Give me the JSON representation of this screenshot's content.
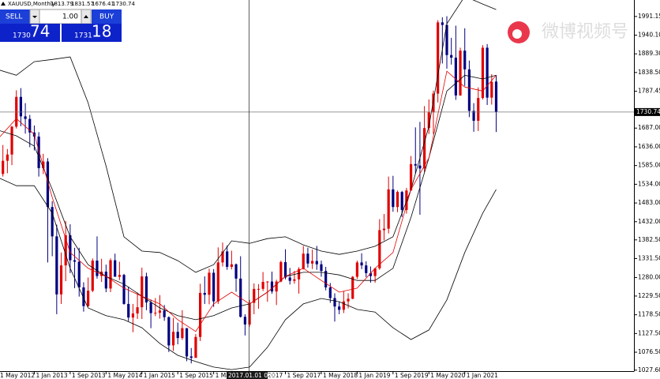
{
  "chart_data": {
    "type": "candlestick",
    "title": "XAUUSD,Monthly",
    "colors": {
      "up": "#e00000",
      "down": "#00007f",
      "background": "#ffffff"
    },
    "ylim": [
      1025,
      2036
    ],
    "yticks": [
      1991.15,
      {
        "value": 1940.1,
        "label": "1940.10"
      },
      {
        "value": 1889.3,
        "label": "1889.30"
      },
      {
        "value": 1838.5,
        "label": "1838.50"
      },
      1787.45,
      {
        "value": 1687,
        "label": "1687.00"
      },
      {
        "value": 1636,
        "label": "1636.00"
      },
      {
        "value": 1585,
        "label": "1585.00"
      },
      {
        "value": 1534,
        "label": "1534.00"
      },
      {
        "value": 1483,
        "label": "1483.00"
      },
      {
        "value": 1432,
        "label": "1432.00"
      },
      {
        "value": 1382.5,
        "label": "1382.50"
      },
      {
        "value": 1331.5,
        "label": "1331.50"
      },
      {
        "value": 1280,
        "label": "1280.00"
      },
      {
        "value": 1229.5,
        "label": "1229.50"
      },
      {
        "value": 1178.5,
        "label": "1178.50"
      },
      {
        "value": 1127.5,
        "label": "1127.50"
      },
      {
        "value": 1076.5,
        "label": "1076.50"
      },
      {
        "value": 1027.6,
        "label": "1027.60"
      }
    ],
    "xticks": [
      {
        "value": "2012-05-01",
        "label": "1 May 2012"
      },
      {
        "value": "2013-01-01",
        "label": "1 Jan 2013"
      },
      {
        "value": "2013-09-01",
        "label": "1 Sep 2013"
      },
      {
        "value": "2014-05-01",
        "label": "1 May 2014"
      },
      {
        "value": "2015-01-01",
        "label": "1 Jan 2015"
      },
      {
        "value": "2015-09-01",
        "label": "1 Sep 2015"
      },
      {
        "value": "2016-05-01",
        "label": "1 May 2016"
      },
      {
        "value": "2017-01-01",
        "label": "1 Jan 2017"
      },
      {
        "value": "2017-09-01",
        "label": "1 Sep 2017"
      },
      {
        "value": "2018-05-01",
        "label": "1 May 2018"
      },
      {
        "value": "2019-01-01",
        "label": "1 Jan 2019"
      },
      {
        "value": "2019-09-01",
        "label": "1 Sep 2019"
      },
      {
        "value": "2020-05-01",
        "label": "1 May 2020"
      },
      {
        "value": "2021-01-01",
        "label": "1 Jan 2021"
      }
    ],
    "candles": {
      "x": [
        "2012-05-01",
        "2012-06-01",
        "2012-07-01",
        "2012-08-01",
        "2012-09-01",
        "2012-10-01",
        "2012-11-01",
        "2012-12-01",
        "2013-01-01",
        "2013-02-01",
        "2013-03-01",
        "2013-04-01",
        "2013-05-01",
        "2013-06-01",
        "2013-07-01",
        "2013-08-01",
        "2013-09-01",
        "2013-10-01",
        "2013-11-01",
        "2013-12-01",
        "2014-01-01",
        "2014-02-01",
        "2014-03-01",
        "2014-04-01",
        "2014-05-01",
        "2014-06-01",
        "2014-07-01",
        "2014-08-01",
        "2014-09-01",
        "2014-10-01",
        "2014-11-01",
        "2014-12-01",
        "2015-01-01",
        "2015-02-01",
        "2015-03-01",
        "2015-04-01",
        "2015-05-01",
        "2015-06-01",
        "2015-07-01",
        "2015-08-01",
        "2015-09-01",
        "2015-10-01",
        "2015-11-01",
        "2015-12-01",
        "2016-01-01",
        "2016-02-01",
        "2016-03-01",
        "2016-04-01",
        "2016-05-01",
        "2016-06-01",
        "2016-07-01",
        "2016-08-01",
        "2016-09-01",
        "2016-10-01",
        "2016-11-01",
        "2016-12-01",
        "2017-01-01",
        "2017-02-01",
        "2017-03-01",
        "2017-04-01",
        "2017-05-01",
        "2017-06-01",
        "2017-07-01",
        "2017-08-01",
        "2017-09-01",
        "2017-10-01",
        "2017-11-01",
        "2017-12-01",
        "2018-01-01",
        "2018-02-01",
        "2018-03-01",
        "2018-04-01",
        "2018-05-01",
        "2018-06-01",
        "2018-07-01",
        "2018-08-01",
        "2018-09-01",
        "2018-10-01",
        "2018-11-01",
        "2018-12-01",
        "2019-01-01",
        "2019-02-01",
        "2019-03-01",
        "2019-04-01",
        "2019-05-01",
        "2019-06-01",
        "2019-07-01",
        "2019-08-01",
        "2019-09-01",
        "2019-10-01",
        "2019-11-01",
        "2019-12-01",
        "2020-01-01",
        "2020-02-01",
        "2020-03-01",
        "2020-04-01",
        "2020-05-01",
        "2020-06-01",
        "2020-07-01",
        "2020-08-01",
        "2020-09-01",
        "2020-10-01",
        "2020-11-01",
        "2020-12-01",
        "2021-01-01",
        "2021-02-01",
        "2021-03-01",
        "2021-04-01",
        "2021-05-01",
        "2021-06-01",
        "2021-07-01",
        "2021-08-01"
      ],
      "open": [
        1664,
        1562,
        1598,
        1615,
        1691,
        1772,
        1719,
        1712,
        1675,
        1664,
        1578,
        1596,
        1472,
        1392,
        1234,
        1313,
        1395,
        1327,
        1323,
        1253,
        1202,
        1244,
        1326,
        1284,
        1296,
        1250,
        1327,
        1282,
        1287,
        1208,
        1171,
        1182,
        1199,
        1283,
        1212,
        1183,
        1184,
        1190,
        1172,
        1095,
        1132,
        1115,
        1142,
        1065,
        1061,
        1118,
        1238,
        1233,
        1293,
        1215,
        1321,
        1351,
        1309,
        1316,
        1277,
        1173,
        1152,
        1211,
        1249,
        1249,
        1268,
        1269,
        1242,
        1269,
        1322,
        1280,
        1271,
        1275,
        1303,
        1345,
        1318,
        1325,
        1316,
        1298,
        1253,
        1224,
        1201,
        1192,
        1215,
        1222,
        1282,
        1321,
        1313,
        1292,
        1284,
        1305,
        1409,
        1413,
        1520,
        1472,
        1513,
        1464,
        1517,
        1589,
        1585,
        1577,
        1687,
        1730,
        1781,
        1975,
        1968,
        1886,
        1879,
        1776,
        1898,
        1847,
        1734,
        1707,
        1769,
        1906,
        1770,
        1813.79
      ],
      "high": [
        1670,
        1641,
        1630,
        1693,
        1790,
        1796,
        1755,
        1723,
        1694,
        1676,
        1617,
        1605,
        1488,
        1424,
        1348,
        1434,
        1425,
        1361,
        1361,
        1267,
        1280,
        1332,
        1392,
        1331,
        1315,
        1332,
        1345,
        1323,
        1290,
        1255,
        1208,
        1239,
        1307,
        1293,
        1220,
        1224,
        1232,
        1205,
        1174,
        1170,
        1157,
        1191,
        1142,
        1088,
        1126,
        1263,
        1283,
        1304,
        1303,
        1362,
        1375,
        1367,
        1353,
        1318,
        1338,
        1180,
        1219,
        1264,
        1262,
        1295,
        1270,
        1296,
        1274,
        1326,
        1357,
        1306,
        1298,
        1308,
        1366,
        1361,
        1356,
        1366,
        1326,
        1309,
        1265,
        1237,
        1214,
        1243,
        1237,
        1284,
        1326,
        1346,
        1324,
        1310,
        1306,
        1439,
        1453,
        1555,
        1557,
        1517,
        1516,
        1524,
        1611,
        1689,
        1704,
        1747,
        1765,
        1789,
        1981,
        1989,
        1992,
        1933,
        1966,
        1906,
        1959,
        1871,
        1755,
        1798,
        1913,
        1916,
        1834,
        1831.57
      ],
      "low": [
        1527,
        1555,
        1564,
        1586,
        1686,
        1692,
        1672,
        1635,
        1626,
        1555,
        1562,
        1321,
        1338,
        1180,
        1208,
        1270,
        1292,
        1251,
        1228,
        1187,
        1200,
        1240,
        1277,
        1268,
        1240,
        1240,
        1282,
        1273,
        1206,
        1161,
        1131,
        1167,
        1167,
        1191,
        1142,
        1175,
        1168,
        1162,
        1077,
        1080,
        1098,
        1110,
        1052,
        1046,
        1062,
        1107,
        1208,
        1207,
        1200,
        1208,
        1310,
        1301,
        1302,
        1241,
        1171,
        1122,
        1146,
        1180,
        1195,
        1243,
        1214,
        1236,
        1205,
        1267,
        1275,
        1261,
        1263,
        1236,
        1302,
        1307,
        1303,
        1301,
        1282,
        1245,
        1211,
        1160,
        1180,
        1183,
        1196,
        1221,
        1276,
        1303,
        1281,
        1266,
        1266,
        1301,
        1381,
        1400,
        1459,
        1458,
        1445,
        1454,
        1517,
        1563,
        1451,
        1567,
        1671,
        1671,
        1757,
        1863,
        1849,
        1860,
        1764,
        1775,
        1802,
        1717,
        1677,
        1679,
        1765,
        1750,
        1751,
        1676.41
      ],
      "close": [
        1562,
        1598,
        1615,
        1691,
        1772,
        1719,
        1712,
        1675,
        1664,
        1578,
        1596,
        1472,
        1392,
        1234,
        1313,
        1395,
        1327,
        1323,
        1253,
        1202,
        1244,
        1326,
        1284,
        1296,
        1250,
        1327,
        1282,
        1287,
        1208,
        1171,
        1182,
        1199,
        1283,
        1212,
        1183,
        1184,
        1190,
        1172,
        1095,
        1132,
        1115,
        1142,
        1065,
        1061,
        1118,
        1238,
        1233,
        1293,
        1215,
        1321,
        1351,
        1309,
        1316,
        1277,
        1173,
        1152,
        1211,
        1249,
        1249,
        1268,
        1269,
        1242,
        1269,
        1322,
        1280,
        1271,
        1275,
        1303,
        1345,
        1318,
        1325,
        1316,
        1298,
        1253,
        1224,
        1201,
        1192,
        1215,
        1222,
        1282,
        1321,
        1313,
        1292,
        1284,
        1305,
        1409,
        1413,
        1520,
        1472,
        1513,
        1464,
        1517,
        1589,
        1585,
        1577,
        1687,
        1730,
        1781,
        1975,
        1968,
        1886,
        1879,
        1776,
        1898,
        1847,
        1734,
        1707,
        1769,
        1906,
        1770,
        1813,
        1730.74
      ]
    },
    "indicators": {
      "x": [
        "2012-05-01",
        "2012-09-01",
        "2013-01-01",
        "2013-05-01",
        "2013-09-01",
        "2014-01-01",
        "2014-05-01",
        "2014-09-01",
        "2015-01-01",
        "2015-05-01",
        "2015-09-01",
        "2016-01-01",
        "2016-05-01",
        "2016-09-01",
        "2017-01-01",
        "2017-05-01",
        "2017-09-01",
        "2018-01-01",
        "2018-05-01",
        "2018-09-01",
        "2019-01-01",
        "2019-05-01",
        "2019-09-01",
        "2020-01-01",
        "2020-05-01",
        "2020-09-01",
        "2021-01-01",
        "2021-05-01",
        "2021-08-01"
      ],
      "series": [
        {
          "color": "#000000",
          "values": [
            1846,
            1831,
            1868,
            1874,
            1881,
            1756,
            1584,
            1391,
            1352,
            1348,
            1326,
            1294,
            1315,
            1380,
            1373,
            1386,
            1391,
            1369,
            1352,
            1343,
            1352,
            1365,
            1391,
            1520,
            1692,
            1971,
            2046,
            2025,
            2010
          ]
        },
        {
          "color": "#000000",
          "values": [
            1552,
            1530,
            1530,
            1455,
            1305,
            1197,
            1176,
            1165,
            1143,
            1100,
            1068,
            1051,
            1036,
            1029,
            1036,
            1090,
            1165,
            1208,
            1223,
            1214,
            1193,
            1186,
            1143,
            1111,
            1137,
            1219,
            1348,
            1455,
            1520
          ]
        },
        {
          "color": "#000000",
          "values": [
            1681,
            1666,
            1638,
            1520,
            1391,
            1315,
            1283,
            1262,
            1229,
            1197,
            1176,
            1165,
            1176,
            1197,
            1208,
            1240,
            1283,
            1294,
            1294,
            1287,
            1272,
            1272,
            1305,
            1444,
            1606,
            1788,
            1831,
            1821,
            1831
          ]
        },
        {
          "color": "#e00000",
          "values": [
            1659,
            1713,
            1670,
            1498,
            1348,
            1305,
            1283,
            1251,
            1229,
            1208,
            1165,
            1133,
            1208,
            1240,
            1208,
            1240,
            1283,
            1305,
            1272,
            1240,
            1251,
            1305,
            1348,
            1520,
            1606,
            1842,
            1799,
            1788,
            1831
          ]
        }
      ]
    },
    "crosshair_label": "2017.01.01 0:00"
  },
  "trade_panel": {
    "sell": "SELL",
    "buy": "BUY",
    "lot": "1.00",
    "sell_price": {
      "small": "1730",
      "big": "74"
    },
    "buy_price": {
      "small": "1731",
      "big": "18"
    }
  },
  "watermark": "微博视频号"
}
